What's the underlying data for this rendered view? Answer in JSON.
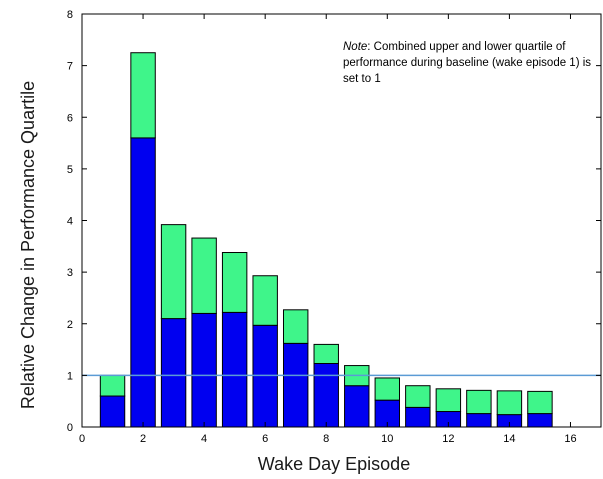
{
  "chart_data": {
    "type": "bar",
    "xlabel": "Wake Day Episode",
    "ylabel": "Relative Change in Performance Quartile",
    "x": [
      1,
      2,
      3,
      4,
      5,
      6,
      7,
      8,
      9,
      10,
      11,
      12,
      13,
      14,
      15
    ],
    "series": [
      {
        "values": [
          0.6,
          5.6,
          2.1,
          2.2,
          2.22,
          1.97,
          1.62,
          1.23,
          0.8,
          0.52,
          0.38,
          0.3,
          0.26,
          0.24,
          0.26
        ]
      },
      {
        "values": [
          0.4,
          1.65,
          1.82,
          1.46,
          1.16,
          0.96,
          0.65,
          0.37,
          0.39,
          0.43,
          0.42,
          0.44,
          0.45,
          0.46,
          0.43
        ]
      }
    ],
    "stacked": true,
    "xlim": [
      0,
      17
    ],
    "ylim": [
      0,
      8
    ],
    "xticks": [
      0,
      2,
      4,
      6,
      8,
      10,
      12,
      14,
      16
    ],
    "yticks": [
      0,
      1,
      2,
      3,
      4,
      5,
      6,
      7,
      8
    ],
    "reference_line": 1,
    "grid": false,
    "colors": {
      "lower": "#0000f0",
      "upper": "#3ff58a",
      "reference": "#5b9bd5",
      "edge": "#000000"
    },
    "annotation": {
      "prefix": "Note",
      "text": ": Combined upper and lower quartile of performance during baseline (wake episode 1) is set to 1"
    }
  }
}
